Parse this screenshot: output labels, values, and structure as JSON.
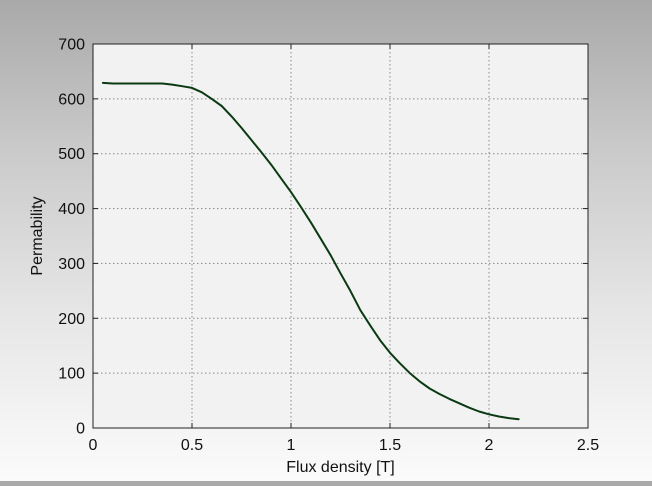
{
  "chart_data": {
    "type": "line",
    "title": "",
    "xlabel": "Flux density [T]",
    "ylabel": "Permability",
    "xlim": [
      0,
      2.5
    ],
    "ylim": [
      0,
      700
    ],
    "x_ticks": [
      0,
      0.5,
      1,
      1.5,
      2,
      2.5
    ],
    "x_tick_labels": [
      "0",
      "0.5",
      "1",
      "1.5",
      "2",
      "2.5"
    ],
    "y_ticks": [
      0,
      100,
      200,
      300,
      400,
      500,
      600,
      700
    ],
    "y_tick_labels": [
      "0",
      "100",
      "200",
      "300",
      "400",
      "500",
      "600",
      "700"
    ],
    "grid": true,
    "legend": "none",
    "colors": {
      "line": "#0a3a12",
      "plot_bg": "#f2f2f2",
      "grid": "#8a8a8a",
      "axis": "#222222"
    },
    "series": [
      {
        "x": [
          0.05,
          0.1,
          0.2,
          0.3,
          0.35,
          0.4,
          0.45,
          0.5,
          0.55,
          0.6,
          0.65,
          0.7,
          0.75,
          0.8,
          0.85,
          0.9,
          0.95,
          1.0,
          1.05,
          1.1,
          1.15,
          1.2,
          1.25,
          1.3,
          1.35,
          1.4,
          1.45,
          1.5,
          1.55,
          1.6,
          1.65,
          1.7,
          1.75,
          1.8,
          1.85,
          1.9,
          1.95,
          2.0,
          2.05,
          2.1,
          2.15
        ],
        "y": [
          629,
          628,
          628,
          628,
          628,
          626,
          623,
          620,
          612,
          600,
          587,
          568,
          547,
          525,
          503,
          480,
          455,
          430,
          403,
          375,
          345,
          315,
          282,
          250,
          215,
          187,
          160,
          137,
          118,
          100,
          85,
          72,
          62,
          53,
          45,
          37,
          30,
          25,
          21,
          18,
          16
        ]
      }
    ]
  }
}
